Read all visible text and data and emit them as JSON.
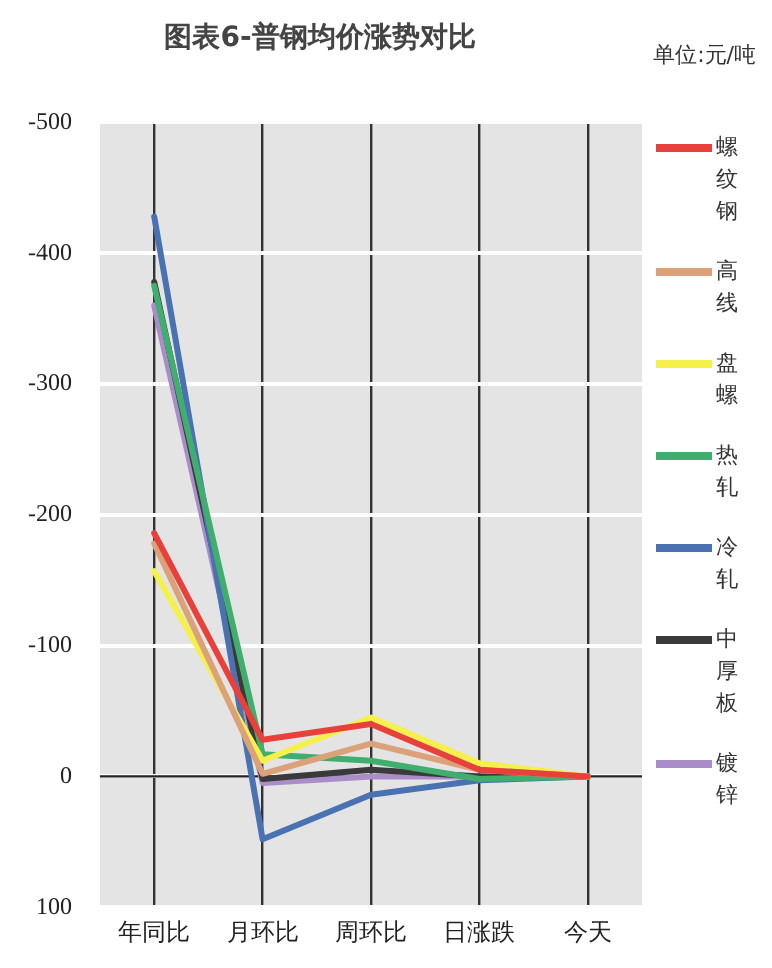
{
  "chart_data": {
    "type": "line",
    "title": "图表6-普钢均价涨势对比",
    "subtitle": "单位:元/吨",
    "categories": [
      "年同比",
      "月环比",
      "周环比",
      "日涨跌",
      "今天"
    ],
    "series": [
      {
        "name": "螺纹钢",
        "color": "#e8413c",
        "values": [
          -186,
          -28,
          -40,
          -5,
          0
        ]
      },
      {
        "name": "高线",
        "color": "#dba179",
        "values": [
          -178,
          -2,
          -25,
          -5,
          0
        ]
      },
      {
        "name": "盘螺",
        "color": "#f5f04a",
        "values": [
          -157,
          -12,
          -45,
          -10,
          0
        ]
      },
      {
        "name": "热轧",
        "color": "#3fae6e",
        "values": [
          -375,
          -17,
          -12,
          2,
          0
        ]
      },
      {
        "name": "冷轧",
        "color": "#4a72b0",
        "values": [
          -428,
          48,
          14,
          3,
          0
        ]
      },
      {
        "name": "中厚板",
        "color": "#3a3a3a",
        "values": [
          -378,
          2,
          -5,
          0,
          0
        ]
      },
      {
        "name": "镀锌",
        "color": "#a98cc8",
        "values": [
          -360,
          5,
          0,
          0,
          0
        ]
      }
    ],
    "ylim": [
      100,
      -500
    ],
    "yticks": [
      100,
      0,
      -100,
      -200,
      -300,
      -400,
      -500
    ],
    "ref_lines": [
      {
        "axis": "y",
        "value": 0,
        "color": "#222222"
      }
    ],
    "grid": true,
    "legend": "right",
    "marker": "none",
    "line_style": "solid"
  }
}
